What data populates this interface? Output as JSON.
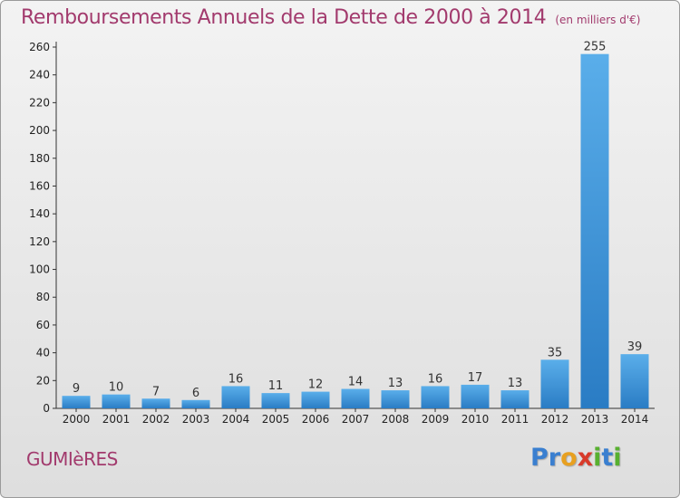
{
  "title": "Remboursements Annuels de la Dette de 2000 à 2014",
  "unit": "(en milliers d'€)",
  "commune": "GUMIèRES",
  "logo": {
    "letters": [
      {
        "char": "P",
        "color": "#3a7fd0"
      },
      {
        "char": "r",
        "color": "#3a7fd0"
      },
      {
        "char": "o",
        "color": "#e8a020"
      },
      {
        "char": "x",
        "color": "#d83a2a"
      },
      {
        "char": "i",
        "color": "#58b030"
      },
      {
        "char": "t",
        "color": "#3a7fd0"
      },
      {
        "char": "i",
        "color": "#58b030"
      }
    ]
  },
  "colors": {
    "title": "#a23a6d",
    "bar_light": "#5aaeea",
    "bar_dark": "#2a7cc4",
    "axis": "#333333"
  },
  "chart_data": {
    "type": "bar",
    "categories": [
      "2000",
      "2001",
      "2002",
      "2003",
      "2004",
      "2005",
      "2006",
      "2007",
      "2008",
      "2009",
      "2010",
      "2011",
      "2012",
      "2013",
      "2014"
    ],
    "values": [
      9,
      10,
      7,
      6,
      16,
      11,
      12,
      14,
      13,
      16,
      17,
      13,
      35,
      255,
      39
    ],
    "ylim": [
      0,
      260
    ],
    "yticks": [
      0,
      20,
      40,
      60,
      80,
      100,
      120,
      140,
      160,
      180,
      200,
      220,
      240,
      260
    ],
    "grid": false,
    "legend": "none"
  }
}
